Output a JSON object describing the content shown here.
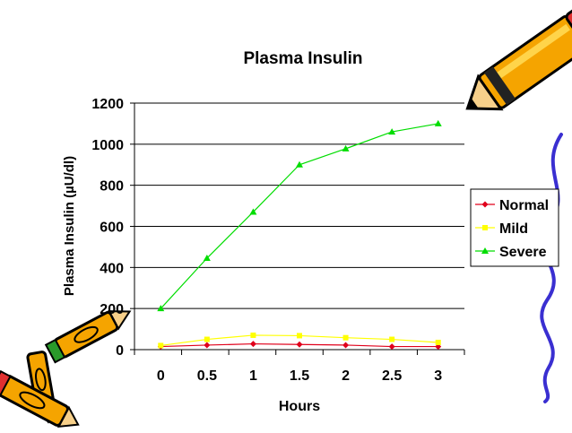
{
  "chart_data": {
    "type": "line",
    "title": "Plasma Insulin",
    "xlabel": "Hours",
    "ylabel": "Plasma Insulin (µU/dl)",
    "categories": [
      "0",
      "0.5",
      "1",
      "1.5",
      "2",
      "2.5",
      "3"
    ],
    "x": [
      0,
      0.5,
      1,
      1.5,
      2,
      2.5,
      3
    ],
    "ylim": [
      0,
      1200
    ],
    "yticks": [
      "0",
      "200",
      "400",
      "600",
      "800",
      "1000",
      "1200"
    ],
    "grid": true,
    "legend": "right",
    "series": [
      {
        "name": "Normal",
        "color": "#e0001b",
        "marker": "diamond",
        "values": [
          15,
          22,
          28,
          25,
          22,
          15,
          15
        ]
      },
      {
        "name": "Mild",
        "color": "#ffff00",
        "marker": "square",
        "values": [
          20,
          50,
          70,
          68,
          58,
          50,
          35
        ]
      },
      {
        "name": "Severe",
        "color": "#00dd00",
        "marker": "triangle",
        "values": [
          200,
          445,
          670,
          900,
          978,
          1060,
          1100
        ]
      }
    ]
  },
  "decorations": {
    "top_right": "pencil-icon",
    "bottom_left": "crayons-icon",
    "right_edge": "squiggle-line-icon"
  }
}
